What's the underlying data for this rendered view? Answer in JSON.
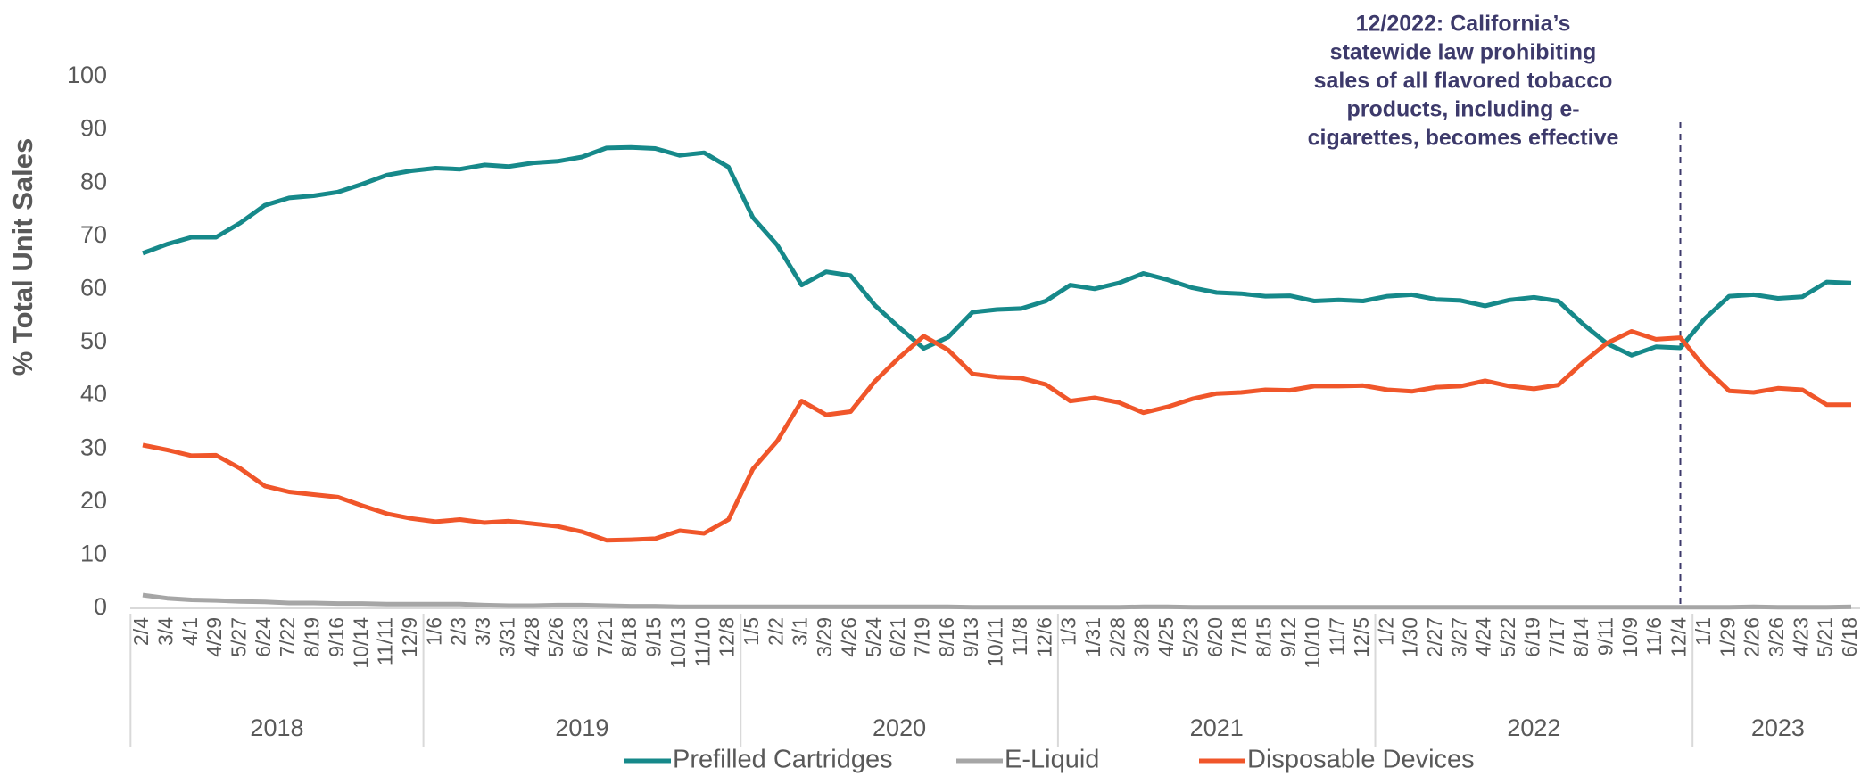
{
  "chart_data": {
    "type": "line",
    "y_label": "% Total Unit Sales",
    "categories": [
      "2/4",
      "3/4",
      "4/1",
      "4/29",
      "5/27",
      "6/24",
      "7/22",
      "8/19",
      "9/16",
      "10/14",
      "11/11",
      "12/9",
      "1/6",
      "2/3",
      "3/3",
      "3/31",
      "4/28",
      "5/26",
      "6/23",
      "7/21",
      "8/18",
      "9/15",
      "10/13",
      "11/10",
      "12/8",
      "1/5",
      "2/2",
      "3/1",
      "3/29",
      "4/26",
      "5/24",
      "6/21",
      "7/19",
      "8/16",
      "9/13",
      "10/11",
      "11/8",
      "12/6",
      "1/3",
      "1/31",
      "2/28",
      "3/28",
      "4/25",
      "5/23",
      "6/20",
      "7/18",
      "8/15",
      "9/12",
      "10/10",
      "11/7",
      "12/5",
      "1/2",
      "1/30",
      "2/27",
      "3/27",
      "4/24",
      "5/22",
      "6/19",
      "7/17",
      "8/14",
      "9/11",
      "10/9",
      "11/6",
      "12/4",
      "1/1",
      "1/29",
      "2/26",
      "3/26",
      "4/23",
      "5/21",
      "6/18"
    ],
    "years": [
      "2018",
      "2019",
      "2020",
      "2021",
      "2022",
      "2023"
    ],
    "series": [
      {
        "name": "Prefilled Cartridges",
        "color": "#16898a",
        "values": [
          66.8,
          68.5,
          69.8,
          69.8,
          72.5,
          75.8,
          77.2,
          77.6,
          78.3,
          79.8,
          81.5,
          82.3,
          82.8,
          82.6,
          83.4,
          83.1,
          83.8,
          84.1,
          84.9,
          86.6,
          86.7,
          86.5,
          85.2,
          85.7,
          83.0,
          73.5,
          68.3,
          60.8,
          63.3,
          62.6,
          57.0,
          52.8,
          48.9,
          51.0,
          55.7,
          56.2,
          56.4,
          57.8,
          60.8,
          60.1,
          61.2,
          63.0,
          61.8,
          60.3,
          59.4,
          59.2,
          58.7,
          58.8,
          57.8,
          58.0,
          57.8,
          58.7,
          59.0,
          58.1,
          57.9,
          56.9,
          58.0,
          58.5,
          57.8,
          53.5,
          49.8,
          47.6,
          49.2,
          49.0,
          54.5,
          58.7,
          59.0,
          58.3,
          58.6,
          61.4,
          61.2
        ]
      },
      {
        "name": "E-Liquid",
        "color": "#a6a6a6",
        "values": [
          2.5,
          1.9,
          1.6,
          1.5,
          1.3,
          1.2,
          1.0,
          1.0,
          0.9,
          0.9,
          0.8,
          0.8,
          0.8,
          0.8,
          0.6,
          0.5,
          0.5,
          0.6,
          0.6,
          0.5,
          0.4,
          0.4,
          0.3,
          0.3,
          0.3,
          0.3,
          0.3,
          0.3,
          0.3,
          0.3,
          0.3,
          0.3,
          0.3,
          0.3,
          0.2,
          0.2,
          0.2,
          0.2,
          0.2,
          0.2,
          0.2,
          0.3,
          0.3,
          0.2,
          0.2,
          0.2,
          0.2,
          0.2,
          0.2,
          0.2,
          0.2,
          0.2,
          0.2,
          0.2,
          0.2,
          0.2,
          0.2,
          0.2,
          0.2,
          0.2,
          0.2,
          0.2,
          0.2,
          0.2,
          0.2,
          0.2,
          0.3,
          0.2,
          0.2,
          0.2,
          0.3
        ]
      },
      {
        "name": "Disposable Devices",
        "color": "#f0562a",
        "values": [
          30.7,
          29.8,
          28.7,
          28.8,
          26.3,
          23.0,
          21.9,
          21.4,
          20.9,
          19.3,
          17.8,
          16.9,
          16.3,
          16.7,
          16.1,
          16.4,
          15.9,
          15.4,
          14.4,
          12.8,
          12.9,
          13.1,
          14.6,
          14.1,
          16.7,
          26.2,
          31.5,
          39.0,
          36.4,
          37.0,
          42.7,
          47.2,
          51.2,
          48.6,
          44.1,
          43.5,
          43.3,
          42.1,
          39.0,
          39.6,
          38.7,
          36.8,
          37.9,
          39.4,
          40.4,
          40.6,
          41.1,
          41.0,
          41.8,
          41.8,
          41.9,
          41.1,
          40.8,
          41.6,
          41.8,
          42.8,
          41.8,
          41.3,
          42.0,
          46.2,
          49.9,
          52.1,
          50.6,
          50.9,
          45.3,
          40.9,
          40.6,
          41.4,
          41.1,
          38.3,
          38.3
        ]
      }
    ],
    "ylim": [
      0,
      100
    ],
    "yticks": [
      0,
      10,
      20,
      30,
      40,
      50,
      60,
      70,
      80,
      90,
      100
    ],
    "annotation": {
      "x": "12/4",
      "lines": [
        "12/2022: California’s",
        "statewide law prohibiting",
        "sales of all flavored tobacco",
        "products, including e-",
        "cigarettes, becomes effective"
      ]
    }
  }
}
